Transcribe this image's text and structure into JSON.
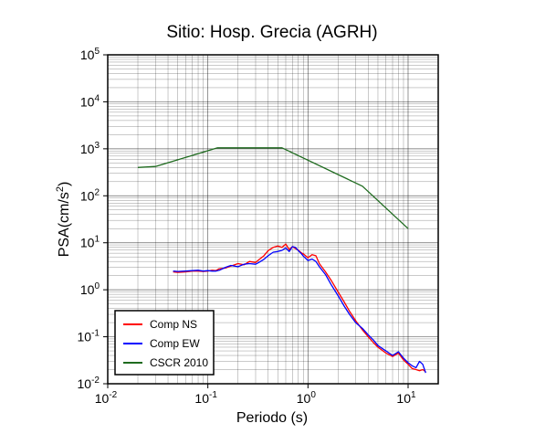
{
  "chart_data": {
    "type": "line",
    "title": "Sitio: Hosp. Grecia (AGRH)",
    "xlabel": "Periodo (s)",
    "ylabel_main": "PSA(cm/s",
    "ylabel_sup": "2",
    "ylabel_tail": ")",
    "x_scale": "log",
    "y_scale": "log",
    "xlim": [
      0.01,
      20
    ],
    "ylim": [
      0.01,
      100000
    ],
    "grid": true,
    "legend_position": "bottom-left",
    "x_ticks": [
      {
        "value": 0.01,
        "base": "10",
        "exp": "-2"
      },
      {
        "value": 0.1,
        "base": "10",
        "exp": "-1"
      },
      {
        "value": 1,
        "base": "10",
        "exp": "0"
      },
      {
        "value": 10,
        "base": "10",
        "exp": "1"
      }
    ],
    "y_ticks": [
      {
        "value": 0.01,
        "base": "10",
        "exp": "-2"
      },
      {
        "value": 0.1,
        "base": "10",
        "exp": "-1"
      },
      {
        "value": 1,
        "base": "10",
        "exp": "0"
      },
      {
        "value": 10,
        "base": "10",
        "exp": "1"
      },
      {
        "value": 100,
        "base": "10",
        "exp": "2"
      },
      {
        "value": 1000,
        "base": "10",
        "exp": "3"
      },
      {
        "value": 10000,
        "base": "10",
        "exp": "4"
      },
      {
        "value": 100000,
        "base": "10",
        "exp": "5"
      }
    ],
    "series": [
      {
        "name": "Comp NS",
        "color": "#ff0000",
        "x": [
          0.045,
          0.05,
          0.06,
          0.07,
          0.08,
          0.09,
          0.1,
          0.11,
          0.12,
          0.13,
          0.15,
          0.17,
          0.2,
          0.23,
          0.26,
          0.3,
          0.33,
          0.36,
          0.4,
          0.45,
          0.5,
          0.55,
          0.6,
          0.65,
          0.7,
          0.75,
          0.8,
          0.85,
          0.9,
          1.0,
          1.1,
          1.2,
          1.3,
          1.5,
          1.7,
          2.0,
          2.3,
          2.6,
          3.0,
          3.5,
          4.0,
          4.5,
          5.0,
          6.0,
          7.0,
          8.0,
          9.0,
          10.0,
          11.0,
          12.0,
          13.0,
          14.0,
          15.0
        ],
        "values": [
          2.4,
          2.35,
          2.4,
          2.5,
          2.5,
          2.45,
          2.5,
          2.6,
          2.55,
          2.8,
          2.9,
          3.2,
          3.6,
          3.4,
          4.0,
          3.8,
          4.5,
          5.2,
          6.8,
          8.0,
          8.5,
          8.0,
          9.4,
          7.2,
          8.3,
          7.5,
          7.0,
          6.2,
          5.8,
          4.8,
          5.6,
          5.3,
          3.6,
          2.4,
          1.6,
          0.9,
          0.55,
          0.35,
          0.22,
          0.14,
          0.1,
          0.075,
          0.06,
          0.045,
          0.038,
          0.045,
          0.032,
          0.026,
          0.021,
          0.02,
          0.019,
          0.02,
          0.018
        ]
      },
      {
        "name": "Comp EW",
        "color": "#0000ff",
        "x": [
          0.045,
          0.05,
          0.06,
          0.07,
          0.08,
          0.09,
          0.1,
          0.11,
          0.12,
          0.13,
          0.15,
          0.17,
          0.2,
          0.23,
          0.26,
          0.3,
          0.33,
          0.36,
          0.4,
          0.45,
          0.5,
          0.55,
          0.6,
          0.65,
          0.7,
          0.75,
          0.8,
          0.85,
          0.9,
          1.0,
          1.1,
          1.2,
          1.3,
          1.5,
          1.7,
          2.0,
          2.3,
          2.6,
          3.0,
          3.5,
          4.0,
          4.5,
          5.0,
          6.0,
          7.0,
          8.0,
          9.0,
          10.0,
          11.0,
          12.0,
          13.0,
          14.0,
          15.0
        ],
        "values": [
          2.5,
          2.45,
          2.5,
          2.55,
          2.6,
          2.5,
          2.55,
          2.5,
          2.5,
          2.6,
          3.0,
          3.3,
          3.1,
          3.5,
          3.6,
          3.5,
          3.9,
          4.4,
          5.3,
          6.3,
          6.5,
          6.9,
          7.8,
          6.5,
          8.3,
          8.0,
          6.8,
          6.0,
          5.2,
          4.2,
          4.5,
          4.0,
          3.1,
          2.1,
          1.3,
          0.75,
          0.45,
          0.3,
          0.2,
          0.15,
          0.11,
          0.085,
          0.065,
          0.05,
          0.04,
          0.048,
          0.035,
          0.028,
          0.024,
          0.022,
          0.03,
          0.026,
          0.017
        ]
      },
      {
        "name": "CSCR 2010",
        "color": "#1f6b1f",
        "x": [
          0.02,
          0.03,
          0.125,
          0.55,
          3.5,
          10.0
        ],
        "values": [
          400,
          420,
          1050,
          1050,
          160,
          20
        ]
      }
    ]
  }
}
